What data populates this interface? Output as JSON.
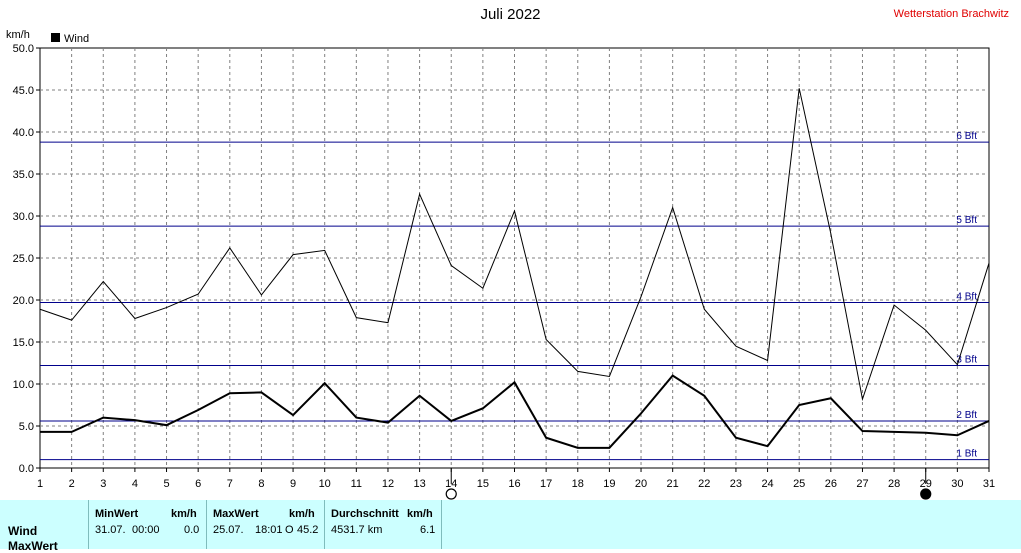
{
  "title": "Juli 2022",
  "station": "Wetterstation Brachwitz",
  "legend": {
    "label": "Wind"
  },
  "colors": {
    "series": "#000000",
    "beaufort_lines": "#00008b",
    "grid": "#808080",
    "stats_bg": "#ccffff",
    "station": "#e00000"
  },
  "markers": [
    {
      "day": 14,
      "symbol": "new-moon-icon"
    },
    {
      "day": 29,
      "symbol": "full-moon-icon"
    }
  ],
  "stats": {
    "row_labels": [
      "Wind",
      "MaxWert"
    ],
    "min": {
      "header": "MinWert",
      "unit": "km/h",
      "date": "31.07.",
      "time": "00:00",
      "value": "0.0"
    },
    "max": {
      "header": "MaxWert",
      "unit": "km/h",
      "date": "25.07.",
      "time": "18:01",
      "dir": "O",
      "value": "45.2"
    },
    "avg": {
      "header": "Durchschnitt",
      "unit": "km/h",
      "distance": "4531.7 km",
      "value": "6.1"
    }
  },
  "chart_data": {
    "type": "line",
    "ylabel": "km/h",
    "x": [
      1,
      2,
      3,
      4,
      5,
      6,
      7,
      8,
      9,
      10,
      11,
      12,
      13,
      14,
      15,
      16,
      17,
      18,
      19,
      20,
      21,
      22,
      23,
      24,
      25,
      26,
      27,
      28,
      29,
      30,
      31
    ],
    "xticks": [
      "1",
      "2",
      "3",
      "4",
      "5",
      "6",
      "7",
      "8",
      "9",
      "10",
      "11",
      "12",
      "13",
      "14",
      "15",
      "16",
      "17",
      "18",
      "19",
      "20",
      "21",
      "22",
      "23",
      "24",
      "25",
      "26",
      "27",
      "28",
      "29",
      "30",
      "31"
    ],
    "ylim": [
      0,
      50
    ],
    "yticks": [
      "0.0",
      "5.0",
      "10.0",
      "15.0",
      "20.0",
      "25.0",
      "30.0",
      "35.0",
      "40.0",
      "45.0",
      "50.0"
    ],
    "grid": true,
    "legend_position": "top-left",
    "series": [
      {
        "name": "Wind",
        "style": "thick",
        "values": [
          4.3,
          4.3,
          6.0,
          5.7,
          5.1,
          6.9,
          8.9,
          9.0,
          6.3,
          10.1,
          6.0,
          5.4,
          8.6,
          5.6,
          7.1,
          10.2,
          3.6,
          2.4,
          2.4,
          6.5,
          11.0,
          8.6,
          3.6,
          2.6,
          7.5,
          8.3,
          4.4,
          4.3,
          4.2,
          3.9,
          5.6
        ]
      },
      {
        "style": "thin",
        "values": [
          18.9,
          17.6,
          22.2,
          17.8,
          19.1,
          20.7,
          26.2,
          20.6,
          25.4,
          25.9,
          17.9,
          17.3,
          32.6,
          24.1,
          21.4,
          30.6,
          15.3,
          11.5,
          10.9,
          20.4,
          31.0,
          18.9,
          14.5,
          12.8,
          45.2,
          27.9,
          8.2,
          19.4,
          16.4,
          12.3,
          24.4
        ]
      }
    ],
    "beaufort": [
      {
        "label": "1 Bft",
        "value": 1.0
      },
      {
        "label": "2 Bft",
        "value": 5.6
      },
      {
        "label": "3 Bft",
        "value": 12.2
      },
      {
        "label": "4 Bft",
        "value": 19.7
      },
      {
        "label": "5 Bft",
        "value": 28.8
      },
      {
        "label": "6 Bft",
        "value": 38.8
      }
    ]
  }
}
